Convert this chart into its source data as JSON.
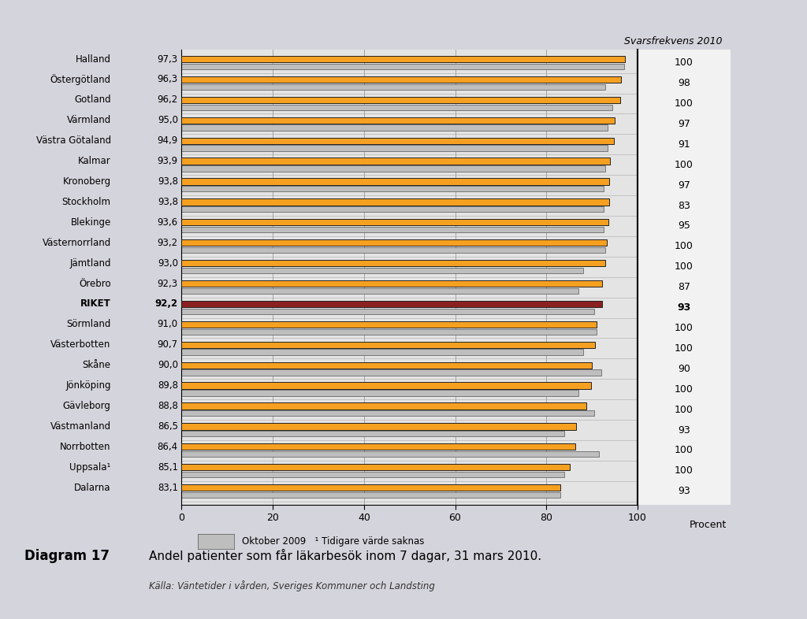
{
  "regions": [
    "Halland",
    "Östergötland",
    "Gotland",
    "Värmland",
    "Västra Götaland",
    "Kalmar",
    "Kronoberg",
    "Stockholm",
    "Blekinge",
    "Västernorrland",
    "Jämtland",
    "Örebro",
    "RIKET",
    "Sörmland",
    "Västerbotten",
    "Skåne",
    "Jönköping",
    "Gävleborg",
    "Västmanland",
    "Norrbotten",
    "Uppsala¹",
    "Dalarna"
  ],
  "values_2010": [
    97.3,
    96.3,
    96.2,
    95.0,
    94.9,
    93.9,
    93.8,
    93.8,
    93.6,
    93.2,
    93.0,
    92.3,
    92.2,
    91.0,
    90.7,
    90.0,
    89.8,
    88.8,
    86.5,
    86.4,
    85.1,
    83.1
  ],
  "values_labels": [
    "97,3",
    "96,3",
    "96,2",
    "95,0",
    "94,9",
    "93,9",
    "93,8",
    "93,8",
    "93,6",
    "93,2",
    "93,0",
    "92,3",
    "92,2",
    "91,0",
    "90,7",
    "90,0",
    "89,8",
    "88,8",
    "86,5",
    "86,4",
    "85,1",
    "83,1"
  ],
  "values_2009": [
    97.0,
    93.0,
    94.5,
    93.5,
    93.5,
    93.0,
    92.5,
    92.5,
    92.5,
    93.0,
    88.0,
    87.0,
    90.5,
    91.0,
    88.0,
    92.0,
    87.0,
    90.5,
    84.0,
    91.5,
    84.0,
    83.0
  ],
  "svarsfrekvens": [
    100,
    98,
    100,
    97,
    91,
    100,
    97,
    83,
    95,
    100,
    100,
    87,
    93,
    100,
    100,
    90,
    100,
    100,
    93,
    100,
    100,
    93
  ],
  "is_riket": [
    false,
    false,
    false,
    false,
    false,
    false,
    false,
    false,
    false,
    false,
    false,
    false,
    true,
    false,
    false,
    false,
    false,
    false,
    false,
    false,
    false,
    false
  ],
  "color_orange": "#F5A020",
  "color_red": "#8B2020",
  "color_gray": "#BEBEBE",
  "color_bg": "#D4D4DC",
  "color_plot_bg": "#E4E4E4",
  "color_white_right": "#F0F0F0",
  "bar_outline": "#555555",
  "title_top": "Svarsfrekvens 2010",
  "xlabel": "Procent",
  "xlim_plot": [
    0,
    100
  ],
  "xticks": [
    0,
    20,
    40,
    60,
    80,
    100
  ],
  "legend_text": "Oktober 2009   ¹ Tidigare värde saknas",
  "diagram_label": "Diagram 17",
  "diagram_title": "Andel patienter som får läkarbesök inom 7 dagar, 31 mars 2010.",
  "source_text": "Källa: Väntetider i vården, Sveriges Kommuner och Landsting"
}
